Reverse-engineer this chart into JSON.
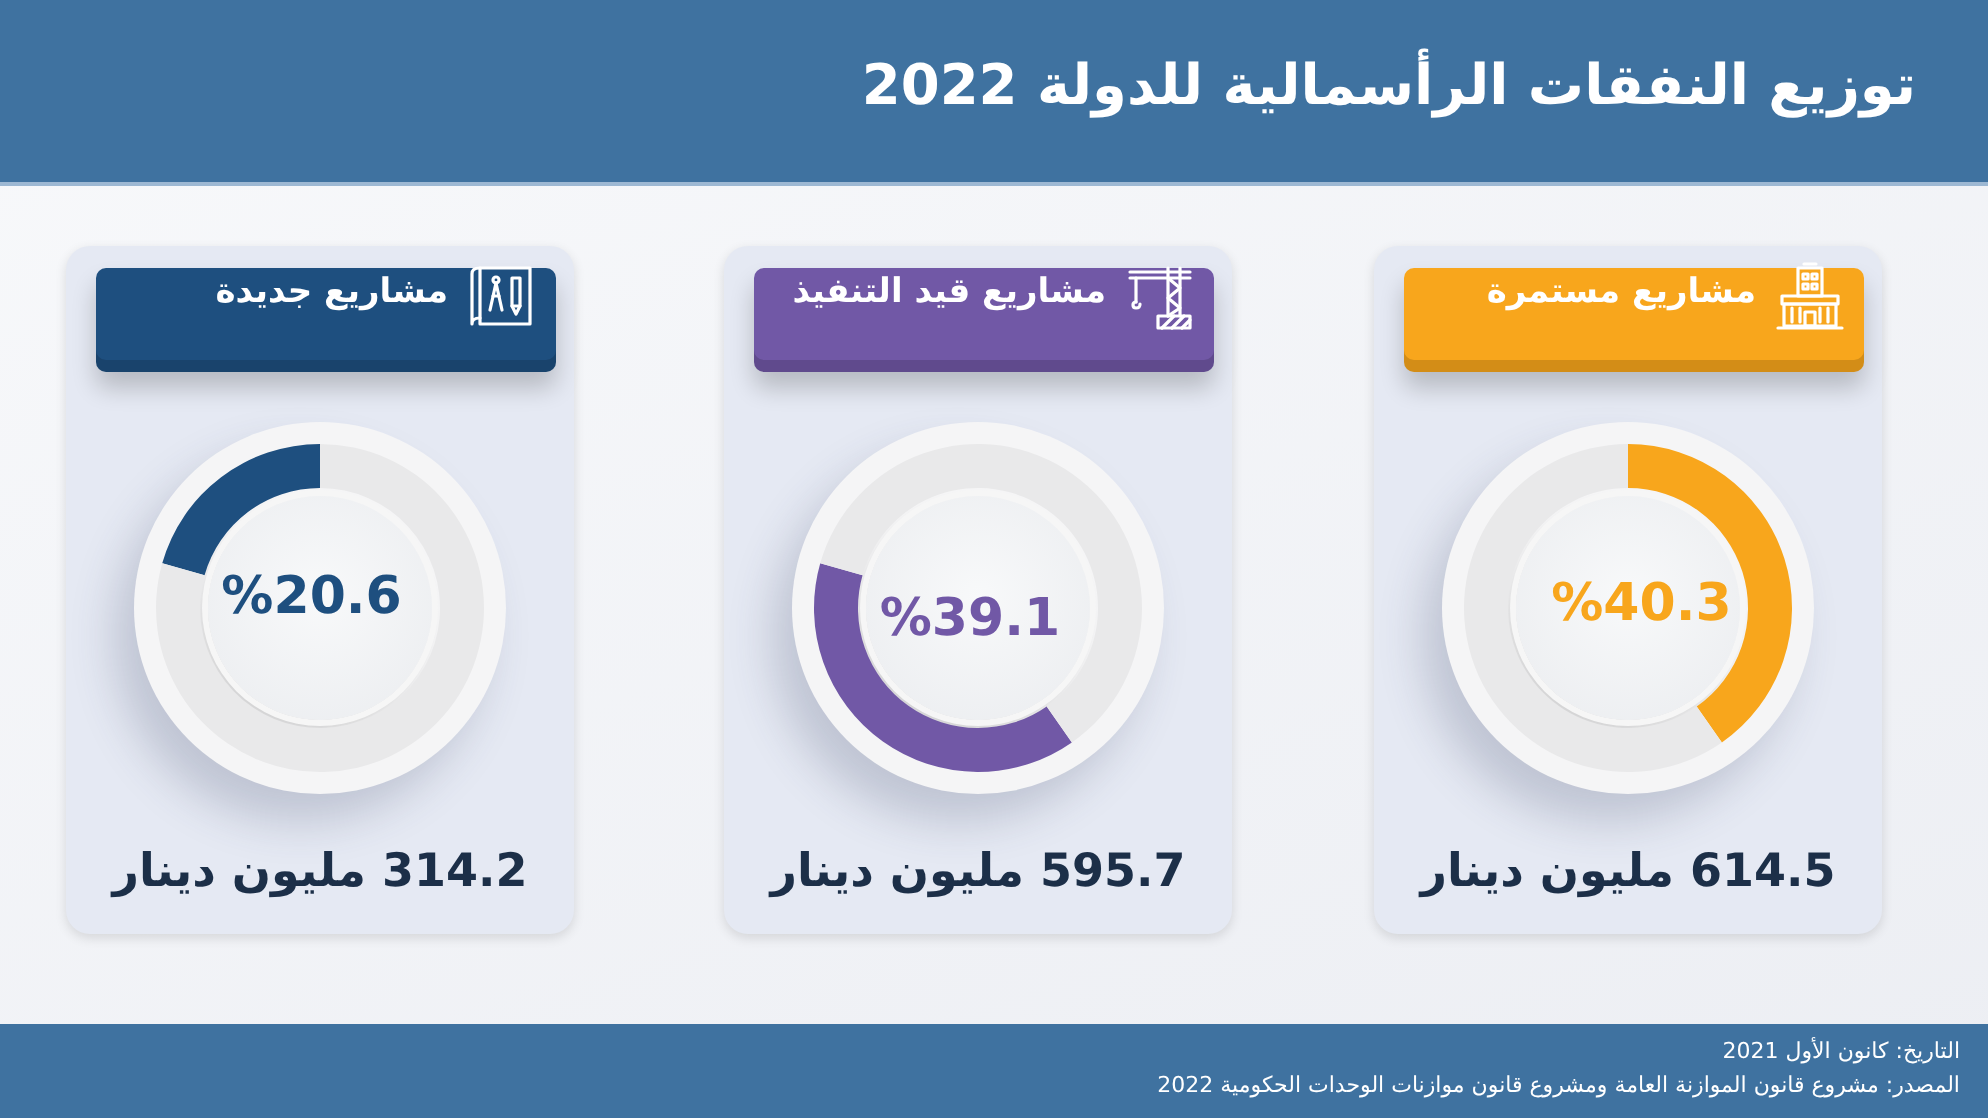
{
  "chart_data": [
    {
      "type": "donut",
      "title": "توزيع النفقات الرأسمالية للدولة 2022",
      "subtitle": "مشاريع مستمرة",
      "categories": [
        null,
        null
      ],
      "values": [
        40.3,
        59.7
      ],
      "colors": [
        "#f8a61c",
        "#e9e9ea"
      ],
      "value_labels": [
        "%40.3",
        null
      ],
      "annotations": [
        "614.5 مليون دينار",
        "التاريخ: كانون الأول 2021",
        "المصدر: مشروع قانون الموازنة العامة ومشروع قانون موازنات الوحدات الحكومية 2022"
      ]
    },
    {
      "type": "donut",
      "subtitle": "مشاريع قيد التنفيذ",
      "categories": [
        null,
        null
      ],
      "values": [
        39.1,
        60.9
      ],
      "colors": [
        "#7158a6",
        "#e9e9ea"
      ],
      "value_labels": [
        "%39.1",
        null
      ],
      "annotations": [
        "595.7 مليون دينار"
      ]
    },
    {
      "type": "donut",
      "subtitle": "مشاريع جديدة",
      "categories": [
        null,
        null
      ],
      "values": [
        20.6,
        79.4
      ],
      "colors": [
        "#1e4f7f",
        "#e9e9ea"
      ],
      "value_labels": [
        "%20.6",
        null
      ],
      "annotations": [
        "314.2 مليون دينار"
      ]
    }
  ]
}
